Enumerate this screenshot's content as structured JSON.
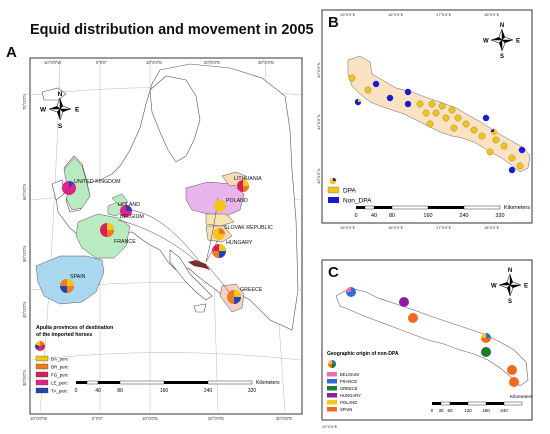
{
  "title": "Equid distribution and movement in 2005",
  "panels": {
    "a": {
      "letter": "A",
      "top_lon_labels": [
        "10°0'0\"W",
        "0°0'0\"",
        "10°0'0\"E",
        "20°0'0\"E",
        "30°0'0\"E"
      ],
      "bottom_lon_labels": [
        "10°0'0\"W",
        "0°0'0\"",
        "10°0'0\"E",
        "20°0'0\"E",
        "30°0'0\"E"
      ],
      "left_lat_labels": [
        "70°0'0\"N",
        "60°0'0\"N",
        "50°0'0\"N",
        "40°0'0\"N",
        "30°0'0\"N"
      ],
      "countries": [
        "UNITED KINGDOM",
        "HOLAND",
        "BELGIUM",
        "FRANCE",
        "SPAIN",
        "LITHUANIA",
        "POLAND",
        "SLOVAK REPUBLIC",
        "HUNGARY",
        "GREECE"
      ],
      "legend_title_1": "Apulia provinces of destination",
      "legend_title_2": "of the imported horses",
      "legend_items": [
        {
          "label": "BA_perc",
          "color": "#f5c518"
        },
        {
          "label": "BR_perc",
          "color": "#f07a1e"
        },
        {
          "label": "FG_perc",
          "color": "#d81e5b"
        },
        {
          "label": "LE_perc",
          "color": "#e0218a"
        },
        {
          "label": "TA_perc",
          "color": "#2541b2"
        }
      ],
      "scale_ticks": [
        "0",
        "40",
        "80",
        "160",
        "240",
        "320"
      ],
      "scale_unit": "Kilometers"
    },
    "b": {
      "letter": "B",
      "top_lon_labels": [
        "15°0'0\"E",
        "16°0'0\"E",
        "17°0'0\"E",
        "18°0'0\"E"
      ],
      "bottom_lon_labels": [
        "15°0'0\"E",
        "16°0'0\"E",
        "17°0'0\"E",
        "18°0'0\"E"
      ],
      "left_lat_labels": [
        "42°0'0\"N",
        "41°0'0\"N",
        "40°0'0\"N"
      ],
      "legend_items": [
        {
          "label": "DPA",
          "color": "#f2c318"
        },
        {
          "label": "Non_DPA",
          "color": "#1a1ad6"
        }
      ],
      "scale_ticks": [
        "0",
        "40",
        "80",
        "160",
        "240",
        "320"
      ],
      "scale_unit": "Kilometers"
    },
    "c": {
      "letter": "C",
      "legend_title": "Geographic origin of non-DPA",
      "legend_items": [
        {
          "label": "BELGIUM",
          "color": "#e86fae"
        },
        {
          "label": "FRANCE",
          "color": "#2e6fd6"
        },
        {
          "label": "GREECE",
          "color": "#1f7a32"
        },
        {
          "label": "HUNGARY",
          "color": "#8a1fa0"
        },
        {
          "label": "POLAND",
          "color": "#f5c518"
        },
        {
          "label": "SPAIN",
          "color": "#f06a1e"
        }
      ],
      "scale_ticks": [
        "0",
        "30",
        "60",
        "120",
        "180",
        "240"
      ],
      "scale_unit": "Kilometers",
      "corner_label": "10°0'0\"E"
    }
  },
  "compass": {
    "n": "N",
    "s": "S",
    "e": "E",
    "w": "W"
  }
}
